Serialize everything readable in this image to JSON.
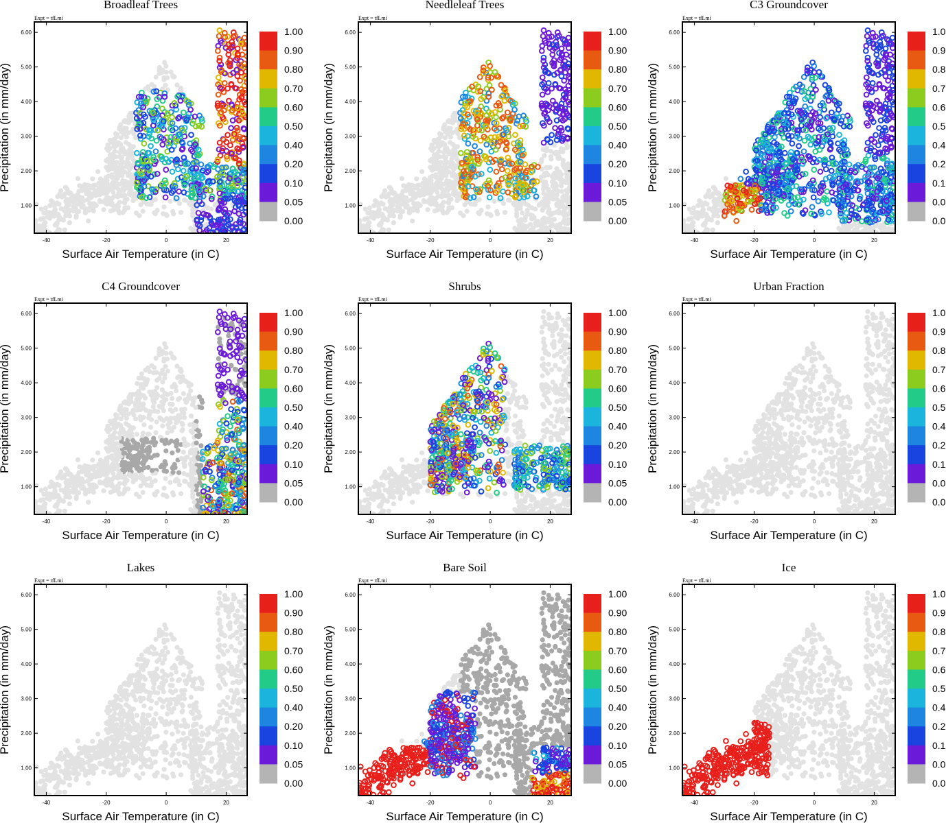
{
  "figure": {
    "expt_label": "Expt = tfLmi",
    "xlabel": "Surface Air Temperature (in C)",
    "ylabel": "Precipitation (in mm/day)",
    "x_ticks": [
      "-40",
      "-20",
      "0",
      "20"
    ],
    "y_ticks": [
      "1.00",
      "2.00",
      "3.00",
      "4.00",
      "5.00",
      "6.00"
    ]
  },
  "colorbar": {
    "labels": [
      "1.00",
      "0.90",
      "0.80",
      "0.70",
      "0.60",
      "0.50",
      "0.40",
      "0.20",
      "0.10",
      "0.05",
      "0.00"
    ],
    "colors": [
      "#e8201c",
      "#e85a12",
      "#e0b800",
      "#8ccc1e",
      "#22cc88",
      "#1ab4dc",
      "#1e86e0",
      "#1a44e0",
      "#6a1ad8",
      "#b4b4b4"
    ]
  },
  "chart_data": [
    {
      "type": "scatter",
      "title": "Broadleaf Trees",
      "xlim": [
        -44,
        27
      ],
      "ylim": [
        0.2,
        6.3
      ],
      "color_min": 0,
      "color_max": 1,
      "note": "fraction high (0.8-1.0) for warm, wet points T>15; moderate 0.1-0.5 for T in -10..25, P 1.5-4; 0 elsewhere"
    },
    {
      "type": "scatter",
      "title": "Needleleaf Trees",
      "xlim": [
        -44,
        27
      ],
      "ylim": [
        0.2,
        6.3
      ],
      "color_min": 0,
      "color_max": 1,
      "note": "fraction 0.7-0.9 for T -5..15, P 1.5-5.2; 0.05 near T 20, P 3-5.5"
    },
    {
      "type": "scatter",
      "title": "C3 Groundcover",
      "xlim": [
        -44,
        27
      ],
      "ylim": [
        0.2,
        6.3
      ],
      "color_min": 0,
      "color_max": 1,
      "note": "fraction 0.05-0.4 over T -25..25, P 0.5-5.2; high 0.8-0.9 near T -25..-20, P 0.6-1.5"
    },
    {
      "type": "scatter",
      "title": "C4 Groundcover",
      "xlim": [
        -44,
        27
      ],
      "ylim": [
        0.2,
        6.3
      ],
      "color_min": 0,
      "color_max": 1,
      "note": "fraction 0.05-0.9 for T 12..26, P 0.3-3.5"
    },
    {
      "type": "scatter",
      "title": "Shrubs",
      "xlim": [
        -44,
        27
      ],
      "ylim": [
        0.2,
        6.3
      ],
      "color_min": 0,
      "color_max": 1,
      "note": "fraction 0.05-0.9 for T -20..5, P 0.8-5.2; 0.2-0.5 for T 8..25, P 1-2"
    },
    {
      "type": "scatter",
      "title": "Urban Fraction",
      "xlim": [
        -44,
        27
      ],
      "ylim": [
        0.2,
        6.3
      ],
      "color_min": 0,
      "color_max": 1,
      "note": "all points 0"
    },
    {
      "type": "scatter",
      "title": "Lakes",
      "xlim": [
        -44,
        27
      ],
      "ylim": [
        0.2,
        6.3
      ],
      "color_min": 0,
      "color_max": 1,
      "note": "all points 0"
    },
    {
      "type": "scatter",
      "title": "Bare Soil",
      "xlim": [
        -44,
        27
      ],
      "ylim": [
        0.2,
        6.3
      ],
      "color_min": 0,
      "color_max": 1,
      "note": "fraction 1.0 for T -40..-20, P 0.2-1.5 and T 14..26, P 0.2-0.8; 0.05 for T -20..-5, P 0.5-3"
    },
    {
      "type": "scatter",
      "title": "Ice",
      "xlim": [
        -44,
        27
      ],
      "ylim": [
        0.2,
        6.3
      ],
      "color_min": 0,
      "color_max": 1,
      "note": "fraction 1.0 for T -44..-15, P 0.2-2.2"
    }
  ]
}
